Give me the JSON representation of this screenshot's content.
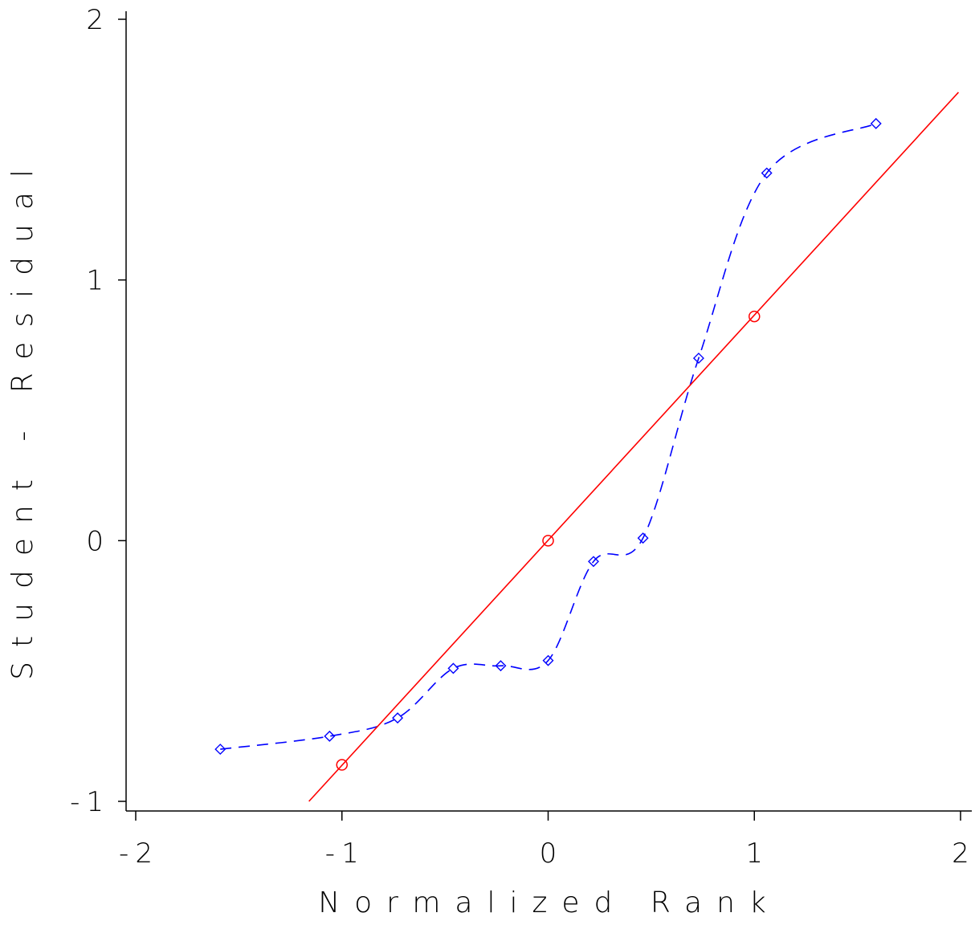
{
  "chart_data": {
    "type": "scatter",
    "title": "",
    "xlabel": "Normalized Rank",
    "ylabel": "Student - Residual",
    "xlim": [
      -2,
      2
    ],
    "ylim": [
      -1,
      2
    ],
    "x_ticks": [
      {
        "value": -2,
        "label": "-2"
      },
      {
        "value": -1,
        "label": "-1"
      },
      {
        "value": 0,
        "label": "0"
      },
      {
        "value": 1,
        "label": "1"
      },
      {
        "value": 2,
        "label": "2"
      }
    ],
    "y_ticks": [
      {
        "value": -1,
        "label": "-1"
      },
      {
        "value": 0,
        "label": "0"
      },
      {
        "value": 1,
        "label": "1"
      },
      {
        "value": 2,
        "label": "2"
      }
    ],
    "grid": false,
    "legend": "none",
    "series": [
      {
        "style": "dashed-smooth",
        "marker": "diamond",
        "color": "#0000ff",
        "x": [
          -1.59,
          -1.06,
          -0.73,
          -0.46,
          -0.23,
          0.0,
          0.22,
          0.46,
          0.73,
          1.06,
          1.59
        ],
        "y": [
          -0.8,
          -0.75,
          -0.68,
          -0.49,
          -0.48,
          -0.46,
          -0.08,
          0.01,
          0.7,
          1.41,
          1.6
        ]
      },
      {
        "style": "solid-line",
        "marker": "none",
        "color": "#ff0000",
        "x": [
          -1.16,
          1.99
        ],
        "y": [
          -1.0,
          1.72
        ]
      },
      {
        "style": "none",
        "marker": "circle",
        "color": "#ff0000",
        "x": [
          -1,
          0,
          1
        ],
        "y": [
          -0.86,
          0.0,
          0.86
        ]
      }
    ]
  }
}
